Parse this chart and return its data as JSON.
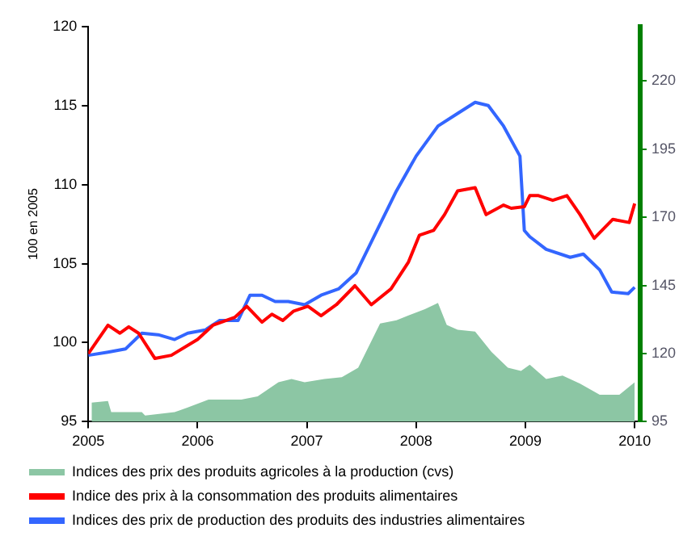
{
  "chart_data": {
    "type": "line",
    "ylabel": "100 en 2005",
    "xlim": [
      2005,
      2010.05
    ],
    "xticks": [
      2005,
      2006,
      2007,
      2008,
      2009,
      2010
    ],
    "ylim": [
      95,
      120
    ],
    "yticks": [
      95,
      100,
      105,
      110,
      115,
      120
    ],
    "y2lim": [
      95,
      240
    ],
    "y2ticks": [
      95,
      120,
      145,
      170,
      195,
      220
    ],
    "grid": false,
    "legend": "bottom",
    "marker": "none",
    "line_style": "solid",
    "series": [
      {
        "name": "Indices des prix des produits agricoles à la production (cvs)",
        "type": "area",
        "axis": "y2",
        "color": "#8cc6a4",
        "x": [
          2005.03,
          2005.18,
          2005.21,
          2005.49,
          2005.52,
          2005.79,
          2005.91,
          2006.1,
          2006.4,
          2006.55,
          2006.74,
          2006.86,
          2006.98,
          2007.16,
          2007.32,
          2007.47,
          2007.67,
          2007.82,
          2007.93,
          2008.08,
          2008.2,
          2008.28,
          2008.38,
          2008.54,
          2008.69,
          2008.84,
          2008.96,
          2009.04,
          2009.19,
          2009.34,
          2009.5,
          2009.68,
          2009.86,
          2010.0
        ],
        "values": [
          102,
          102.6,
          98.5,
          98.5,
          97.3,
          98.5,
          100.2,
          103.1,
          103.1,
          104.3,
          109.5,
          110.7,
          109.5,
          110.7,
          111.3,
          114.8,
          131,
          132.2,
          134,
          136.3,
          138.6,
          130.5,
          128.7,
          128.1,
          120.6,
          114.8,
          113.6,
          115.9,
          110.7,
          111.9,
          109,
          104.9,
          104.9,
          109.5
        ]
      },
      {
        "name": "Indice des prix à la consommation des produits alimentaires",
        "type": "line",
        "color": "#ff0000",
        "x": [
          2005.0,
          2005.18,
          2005.29,
          2005.37,
          2005.46,
          2005.61,
          2005.76,
          2006.0,
          2006.14,
          2006.34,
          2006.45,
          2006.59,
          2006.68,
          2006.78,
          2006.88,
          2007.01,
          2007.13,
          2007.27,
          2007.44,
          2007.59,
          2007.77,
          2007.93,
          2008.03,
          2008.16,
          2008.26,
          2008.38,
          2008.54,
          2008.64,
          2008.8,
          2008.87,
          2008.99,
          2009.04,
          2009.12,
          2009.25,
          2009.38,
          2009.5,
          2009.63,
          2009.8,
          2009.95,
          2010.0
        ],
        "values": [
          99.3,
          101.1,
          100.6,
          101,
          100.6,
          99,
          99.2,
          100.2,
          101.1,
          101.6,
          102.3,
          101.3,
          101.8,
          101.4,
          102,
          102.3,
          101.7,
          102.4,
          103.6,
          102.4,
          103.4,
          105.1,
          106.8,
          107.1,
          108.1,
          109.6,
          109.8,
          108.1,
          108.7,
          108.5,
          108.6,
          109.3,
          109.3,
          109,
          109.3,
          108.1,
          106.6,
          107.8,
          107.6,
          108.8
        ]
      },
      {
        "name": "Indices des prix de production des produits des industries alimentaires",
        "type": "line",
        "color": "#3366ff",
        "x": [
          2005.0,
          2005.18,
          2005.34,
          2005.49,
          2005.64,
          2005.79,
          2005.91,
          2006.07,
          2006.2,
          2006.37,
          2006.48,
          2006.59,
          2006.71,
          2006.83,
          2006.98,
          2007.13,
          2007.29,
          2007.45,
          2007.67,
          2007.82,
          2008.0,
          2008.2,
          2008.38,
          2008.54,
          2008.66,
          2008.8,
          2008.95,
          2008.99,
          2009.04,
          2009.19,
          2009.41,
          2009.53,
          2009.68,
          2009.79,
          2009.94,
          2010.0
        ],
        "values": [
          99.2,
          99.4,
          99.6,
          100.6,
          100.5,
          100.2,
          100.6,
          100.8,
          101.4,
          101.4,
          103,
          103,
          102.6,
          102.6,
          102.4,
          103,
          103.4,
          104.4,
          107.5,
          109.6,
          111.8,
          113.7,
          114.5,
          115.2,
          115,
          113.7,
          111.8,
          107.1,
          106.7,
          105.9,
          105.4,
          105.6,
          104.6,
          103.2,
          103.1,
          103.5
        ]
      }
    ]
  }
}
